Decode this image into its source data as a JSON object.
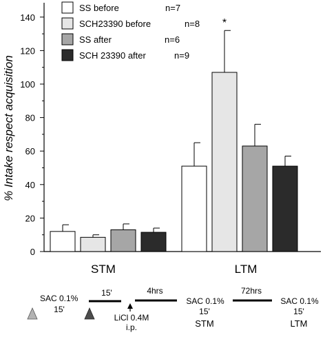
{
  "chart_data": {
    "type": "bar",
    "title": "",
    "ylabel": "% Intake respect acquisition",
    "xlabel": "",
    "ylim": [
      0,
      150
    ],
    "yticks": [
      "0",
      "20",
      "40",
      "60",
      "80",
      "100",
      "120",
      "140"
    ],
    "yticks_values": [
      0,
      20,
      40,
      60,
      80,
      100,
      120,
      140
    ],
    "grid": false,
    "legend_position": "top-left",
    "categories": [
      "STM",
      "LTM"
    ],
    "series": [
      {
        "name": "SS before",
        "n": "n=7",
        "color": "#ffffff",
        "values": [
          12,
          51
        ],
        "errors": [
          4,
          14
        ]
      },
      {
        "name": "SCH23390 before",
        "n": "n=8",
        "color": "#e6e6e6",
        "values": [
          8.5,
          107
        ],
        "errors": [
          1.5,
          25
        ]
      },
      {
        "name": "SS after",
        "n": "n=6",
        "color": "#a6a6a6",
        "values": [
          13,
          63
        ],
        "errors": [
          3.5,
          13
        ]
      },
      {
        "name": "SCH 23390  after",
        "n": "n=9",
        "color": "#2b2b2b",
        "values": [
          11.5,
          51
        ],
        "errors": [
          2.5,
          6
        ]
      }
    ],
    "annotations": [
      {
        "text": "*",
        "category": "LTM",
        "series": 1
      }
    ]
  },
  "protocol": {
    "sac1_line1": "SAC 0.1%",
    "sac1_line2": "15'",
    "interval1": "15'",
    "licl_line1": "LiCl 0.4M",
    "licl_line2": "i.p.",
    "interval2": "4hrs",
    "sac2_line1": "SAC 0.1%",
    "sac2_line2": "15'",
    "sac2_label": "STM",
    "interval3": "72hrs",
    "sac3_line1": "SAC 0.1%",
    "sac3_line2": "15'",
    "sac3_label": "LTM",
    "colors": {
      "triangle_light": "#b3b3b3",
      "triangle_dark": "#4d4d4d"
    }
  }
}
